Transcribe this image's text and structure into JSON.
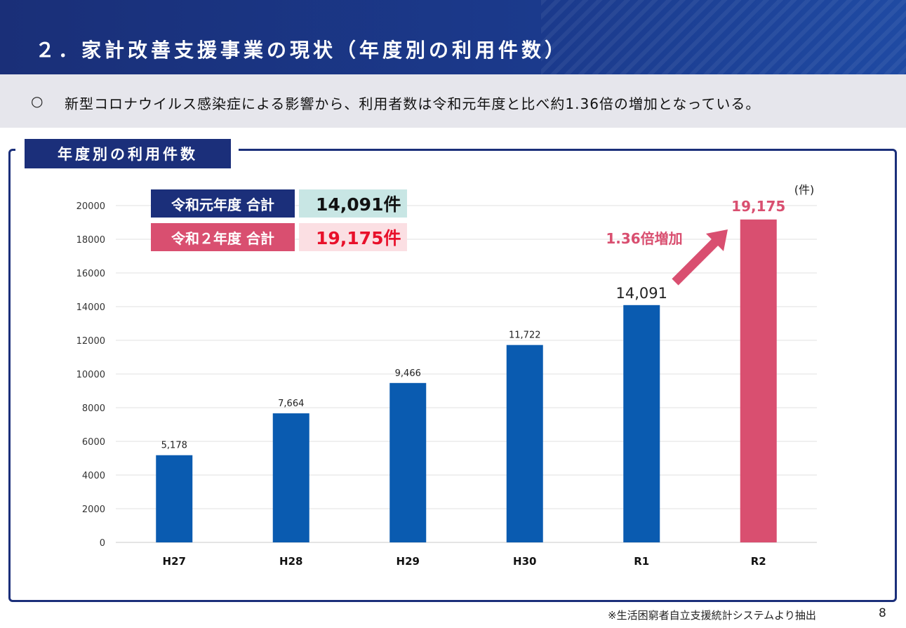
{
  "header": {
    "title": "２．家計改善支援事業の現状（年度別の利用件数）"
  },
  "summary": {
    "bullet": "○",
    "text": "新型コロナウイルス感染症による影響から、利用者数は令和元年度と比べ約1.36倍の増加となっている。"
  },
  "section": {
    "label": "年度別の利用件数"
  },
  "totals": [
    {
      "label": "令和元年度 合計",
      "value": "14,091件",
      "label_color": "#1b2f7a",
      "value_bg": "#c8e6e4",
      "value_color": "#111111"
    },
    {
      "label": "令和２年度 合計",
      "value": "19,175件",
      "label_color": "#d94f70",
      "value_bg": "#fbdfe3",
      "value_color": "#e8102a"
    }
  ],
  "annotation": {
    "text": "1.36倍増加",
    "color": "#d94f70"
  },
  "unit": "(件)",
  "footer": {
    "note": "※生活困窮者自立支援統計システムより抽出",
    "page": "8"
  },
  "chart_data": {
    "type": "bar",
    "categories": [
      "H27",
      "H28",
      "H29",
      "H30",
      "R1",
      "R2"
    ],
    "values": [
      5178,
      7664,
      9466,
      11722,
      14091,
      19175
    ],
    "value_labels": [
      "5,178",
      "7,664",
      "9,466",
      "11,722",
      "14,091",
      "19,175"
    ],
    "ylim": [
      0,
      20000
    ],
    "yticks": [
      "0",
      "2000",
      "4000",
      "6000",
      "8000",
      "10000",
      "12000",
      "14000",
      "16000",
      "18000",
      "20000"
    ],
    "grid": true,
    "bar_color": "#0a5bb0",
    "highlight_index": 5,
    "highlight_color": "#d94f70"
  }
}
